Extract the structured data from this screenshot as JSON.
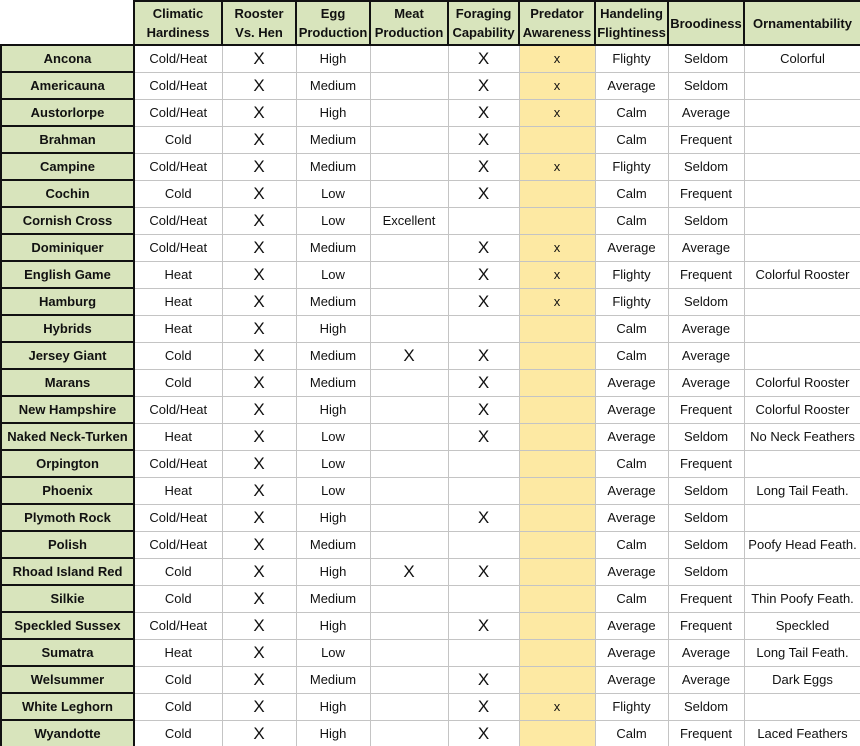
{
  "table": {
    "headers": [
      "Climatic Hardiness",
      "Rooster Vs. Hen",
      "Egg Production",
      "Meat Production",
      "Foraging Capability",
      "Predator Awareness",
      "Handeling Flightiness",
      "Broodiness",
      "Ornamentability"
    ],
    "rows": [
      {
        "name": "Ancona",
        "cells": [
          "Cold/Heat",
          "X",
          "High",
          null,
          "X",
          "x",
          "Flighty",
          "Seldom",
          "Colorful"
        ]
      },
      {
        "name": "Americauna",
        "cells": [
          "Cold/Heat",
          "X",
          "Medium",
          null,
          "X",
          "x",
          "Average",
          "Seldom",
          null
        ]
      },
      {
        "name": "Austorlorpe",
        "cells": [
          "Cold/Heat",
          "X",
          "High",
          null,
          "X",
          "x",
          "Calm",
          "Average",
          null
        ]
      },
      {
        "name": "Brahman",
        "cells": [
          "Cold",
          "X",
          "Medium",
          null,
          "X",
          null,
          "Calm",
          "Frequent",
          null
        ]
      },
      {
        "name": "Campine",
        "cells": [
          "Cold/Heat",
          "X",
          "Medium",
          null,
          "X",
          "x",
          "Flighty",
          "Seldom",
          null
        ]
      },
      {
        "name": "Cochin",
        "cells": [
          "Cold",
          "X",
          "Low",
          null,
          "X",
          null,
          "Calm",
          "Frequent",
          null
        ]
      },
      {
        "name": "Cornish Cross",
        "cells": [
          "Cold/Heat",
          "X",
          "Low",
          "Excellent",
          null,
          null,
          "Calm",
          "Seldom",
          null
        ]
      },
      {
        "name": "Dominiquer",
        "cells": [
          "Cold/Heat",
          "X",
          "Medium",
          null,
          "X",
          "x",
          "Average",
          "Average",
          null
        ]
      },
      {
        "name": "English Game",
        "cells": [
          "Heat",
          "X",
          "Low",
          null,
          "X",
          "x",
          "Flighty",
          "Frequent",
          "Colorful Rooster"
        ]
      },
      {
        "name": "Hamburg",
        "cells": [
          "Heat",
          "X",
          "Medium",
          null,
          "X",
          "x",
          "Flighty",
          "Seldom",
          null
        ]
      },
      {
        "name": "Hybrids",
        "cells": [
          "Heat",
          "X",
          "High",
          null,
          null,
          null,
          "Calm",
          "Average",
          null
        ]
      },
      {
        "name": "Jersey Giant",
        "cells": [
          "Cold",
          "X",
          "Medium",
          "X",
          "X",
          null,
          "Calm",
          "Average",
          null
        ]
      },
      {
        "name": "Marans",
        "cells": [
          "Cold",
          "X",
          "Medium",
          null,
          "X",
          null,
          "Average",
          "Average",
          "Colorful Rooster"
        ]
      },
      {
        "name": "New Hampshire",
        "cells": [
          "Cold/Heat",
          "X",
          "High",
          null,
          "X",
          null,
          "Average",
          "Frequent",
          "Colorful Rooster"
        ]
      },
      {
        "name": "Naked Neck-Turken",
        "cells": [
          "Heat",
          "X",
          "Low",
          null,
          "X",
          null,
          "Average",
          "Seldom",
          "No Neck Feathers"
        ]
      },
      {
        "name": "Orpington",
        "cells": [
          "Cold/Heat",
          "X",
          "Low",
          null,
          null,
          null,
          "Calm",
          "Frequent",
          null
        ]
      },
      {
        "name": "Phoenix",
        "cells": [
          "Heat",
          "X",
          "Low",
          null,
          null,
          null,
          "Average",
          "Seldom",
          "Long Tail Feath."
        ]
      },
      {
        "name": "Plymoth Rock",
        "cells": [
          "Cold/Heat",
          "X",
          "High",
          null,
          "X",
          null,
          "Average",
          "Seldom",
          null
        ]
      },
      {
        "name": "Polish",
        "cells": [
          "Cold/Heat",
          "X",
          "Medium",
          null,
          null,
          null,
          "Calm",
          "Seldom",
          "Poofy Head Feath."
        ]
      },
      {
        "name": "Rhoad Island Red",
        "cells": [
          "Cold",
          "X",
          "High",
          "X",
          "X",
          null,
          "Average",
          "Seldom",
          null
        ]
      },
      {
        "name": "Silkie",
        "cells": [
          "Cold",
          "X",
          "Medium",
          null,
          null,
          null,
          "Calm",
          "Frequent",
          "Thin Poofy Feath."
        ]
      },
      {
        "name": "Speckled Sussex",
        "cells": [
          "Cold/Heat",
          "X",
          "High",
          null,
          "X",
          null,
          "Average",
          "Frequent",
          "Speckled"
        ]
      },
      {
        "name": "Sumatra",
        "cells": [
          "Heat",
          "X",
          "Low",
          null,
          null,
          null,
          "Average",
          "Average",
          "Long Tail Feath."
        ]
      },
      {
        "name": "Welsummer",
        "cells": [
          "Cold",
          "X",
          "Medium",
          null,
          "X",
          null,
          "Average",
          "Average",
          "Dark Eggs"
        ]
      },
      {
        "name": "White Leghorn",
        "cells": [
          "Cold",
          "X",
          "High",
          null,
          "X",
          "x",
          "Flighty",
          "Seldom",
          null
        ]
      },
      {
        "name": "Wyandotte",
        "cells": [
          "Cold",
          "X",
          "High",
          null,
          "X",
          null,
          "Calm",
          "Frequent",
          "Laced Feathers"
        ]
      }
    ]
  }
}
